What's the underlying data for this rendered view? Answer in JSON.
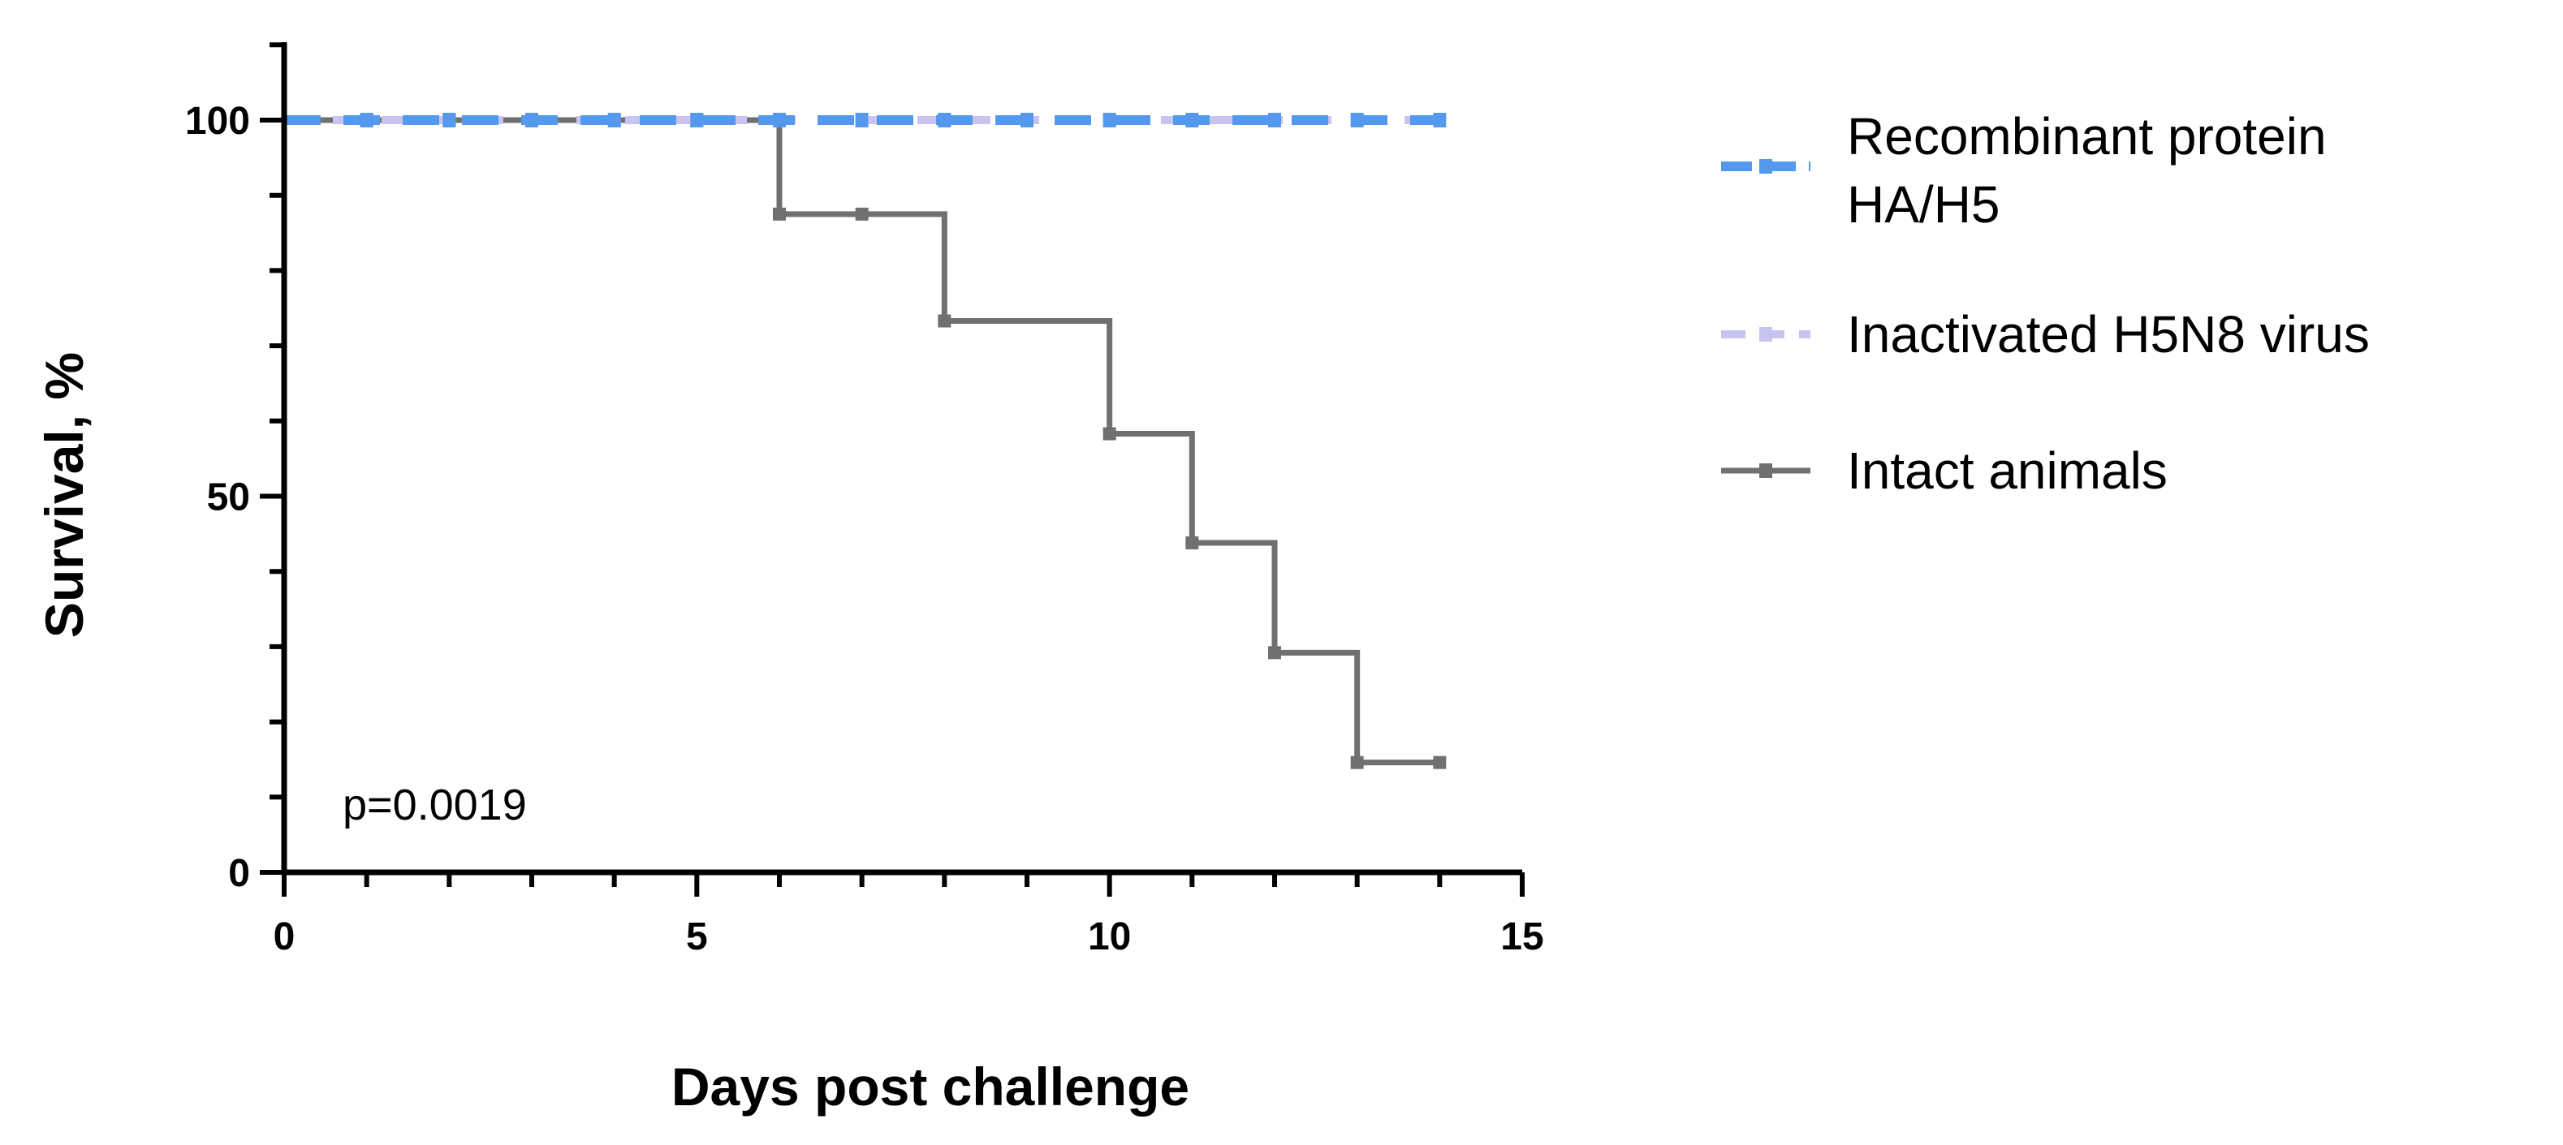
{
  "chart_data": {
    "type": "line",
    "title": "",
    "xlabel": "Days post challenge",
    "ylabel": "Survival,  %",
    "xlim": [
      0,
      15
    ],
    "ylim": [
      0,
      100
    ],
    "x_ticks": [
      "0",
      "5",
      "10",
      "15"
    ],
    "y_ticks": [
      "0",
      "50",
      "100"
    ],
    "grid": false,
    "legend_position": "right",
    "annotation": "p=0.0019",
    "series": [
      {
        "name": "Recombinant protein HA/H5",
        "legend_lines": [
          "Recombinant protein",
          "HA/H5"
        ],
        "color": "#5599ee",
        "style": "dashed",
        "x": [
          0,
          14
        ],
        "y": [
          100,
          100
        ]
      },
      {
        "name": "Inactivated H5N8 virus",
        "legend_lines": [
          "Inactivated H5N8 virus"
        ],
        "color": "#c8c4f0",
        "style": "dashed",
        "x": [
          0,
          14
        ],
        "y": [
          100,
          100
        ]
      },
      {
        "name": "Intact animals",
        "legend_lines": [
          "Intact animals"
        ],
        "color": "#707070",
        "style": "solid-step",
        "x": [
          0,
          6,
          8,
          10,
          11,
          12,
          13,
          14
        ],
        "y": [
          100,
          87.5,
          73.3,
          58.3,
          43.8,
          29.2,
          14.6,
          14.6
        ],
        "markers_x": [
          1,
          2,
          3,
          4,
          5,
          6,
          7,
          8,
          10,
          11,
          12,
          13,
          14
        ],
        "markers_y": [
          100,
          100,
          100,
          100,
          100,
          87.5,
          87.5,
          73.3,
          58.3,
          43.8,
          29.2,
          14.6,
          14.6
        ]
      }
    ]
  }
}
